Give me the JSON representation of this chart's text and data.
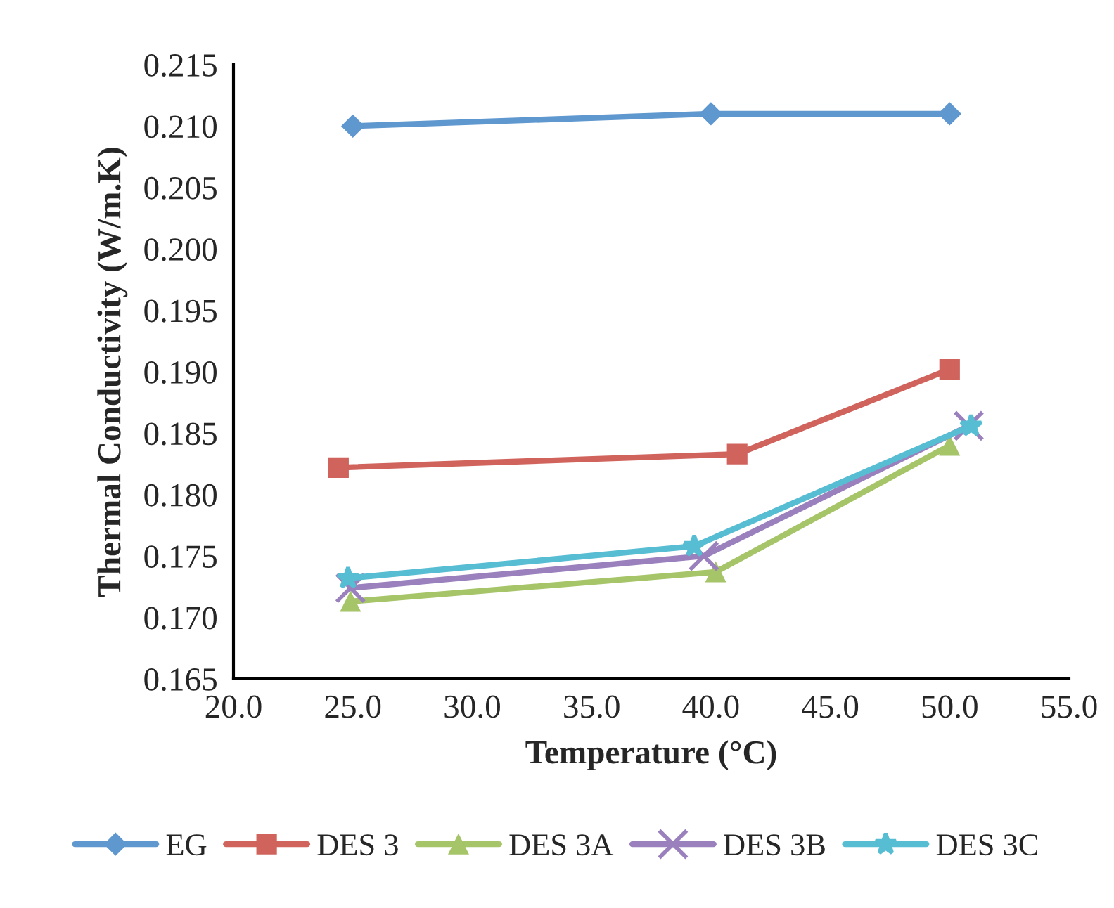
{
  "chart_data": {
    "type": "line",
    "xlabel": "Temperature (°C)",
    "ylabel": "Thermal Conductivity (W/m.K)",
    "xlim": [
      20.0,
      55.0
    ],
    "xticks": [
      {
        "value": 20,
        "label": "20.0"
      },
      {
        "value": 25,
        "label": "25.0"
      },
      {
        "value": 30,
        "label": "30.0"
      },
      {
        "value": 35,
        "label": "35.0"
      },
      {
        "value": 40,
        "label": "40.0"
      },
      {
        "value": 45,
        "label": "45.0"
      },
      {
        "value": 50,
        "label": "50.0"
      },
      {
        "value": 55,
        "label": "55.0"
      }
    ],
    "ylim": [
      0.165,
      0.215
    ],
    "yticks": [
      0.165,
      {
        "value": 0.17,
        "label": "0.170"
      },
      0.175,
      {
        "value": 0.18,
        "label": "0.180"
      },
      0.185,
      {
        "value": 0.19,
        "label": "0.190"
      },
      0.195,
      {
        "value": 0.2,
        "label": "0.200"
      },
      0.205,
      {
        "value": 0.21,
        "label": "0.210"
      },
      0.215
    ],
    "grid": false,
    "legend": "bottom",
    "line_style": "solid",
    "series": [
      {
        "name": "EG",
        "color": "#5f97cf",
        "marker": "diamond",
        "x": [
          25.0,
          40.0,
          50.0
        ],
        "values": [
          0.21,
          0.211,
          0.211
        ]
      },
      {
        "name": "DES 3",
        "color": "#d0635c",
        "marker": "square",
        "x": [
          24.4,
          41.1,
          50.0
        ],
        "values": [
          0.1822,
          0.1833,
          0.1902
        ]
      },
      {
        "name": "DES 3A",
        "color": "#a6c468",
        "marker": "triangle",
        "x": [
          24.9,
          40.2,
          50.0
        ],
        "values": [
          0.1713,
          0.1737,
          0.184
        ]
      },
      {
        "name": "DES 3B",
        "color": "#9a80bd",
        "marker": "cross",
        "x": [
          24.9,
          39.7,
          50.8
        ],
        "values": [
          0.1724,
          0.175,
          0.1856
        ]
      },
      {
        "name": "DES 3C",
        "color": "#57bdd3",
        "marker": "star",
        "x": [
          24.8,
          39.3,
          50.9
        ],
        "values": [
          0.1732,
          0.1758,
          0.1856
        ]
      }
    ]
  }
}
